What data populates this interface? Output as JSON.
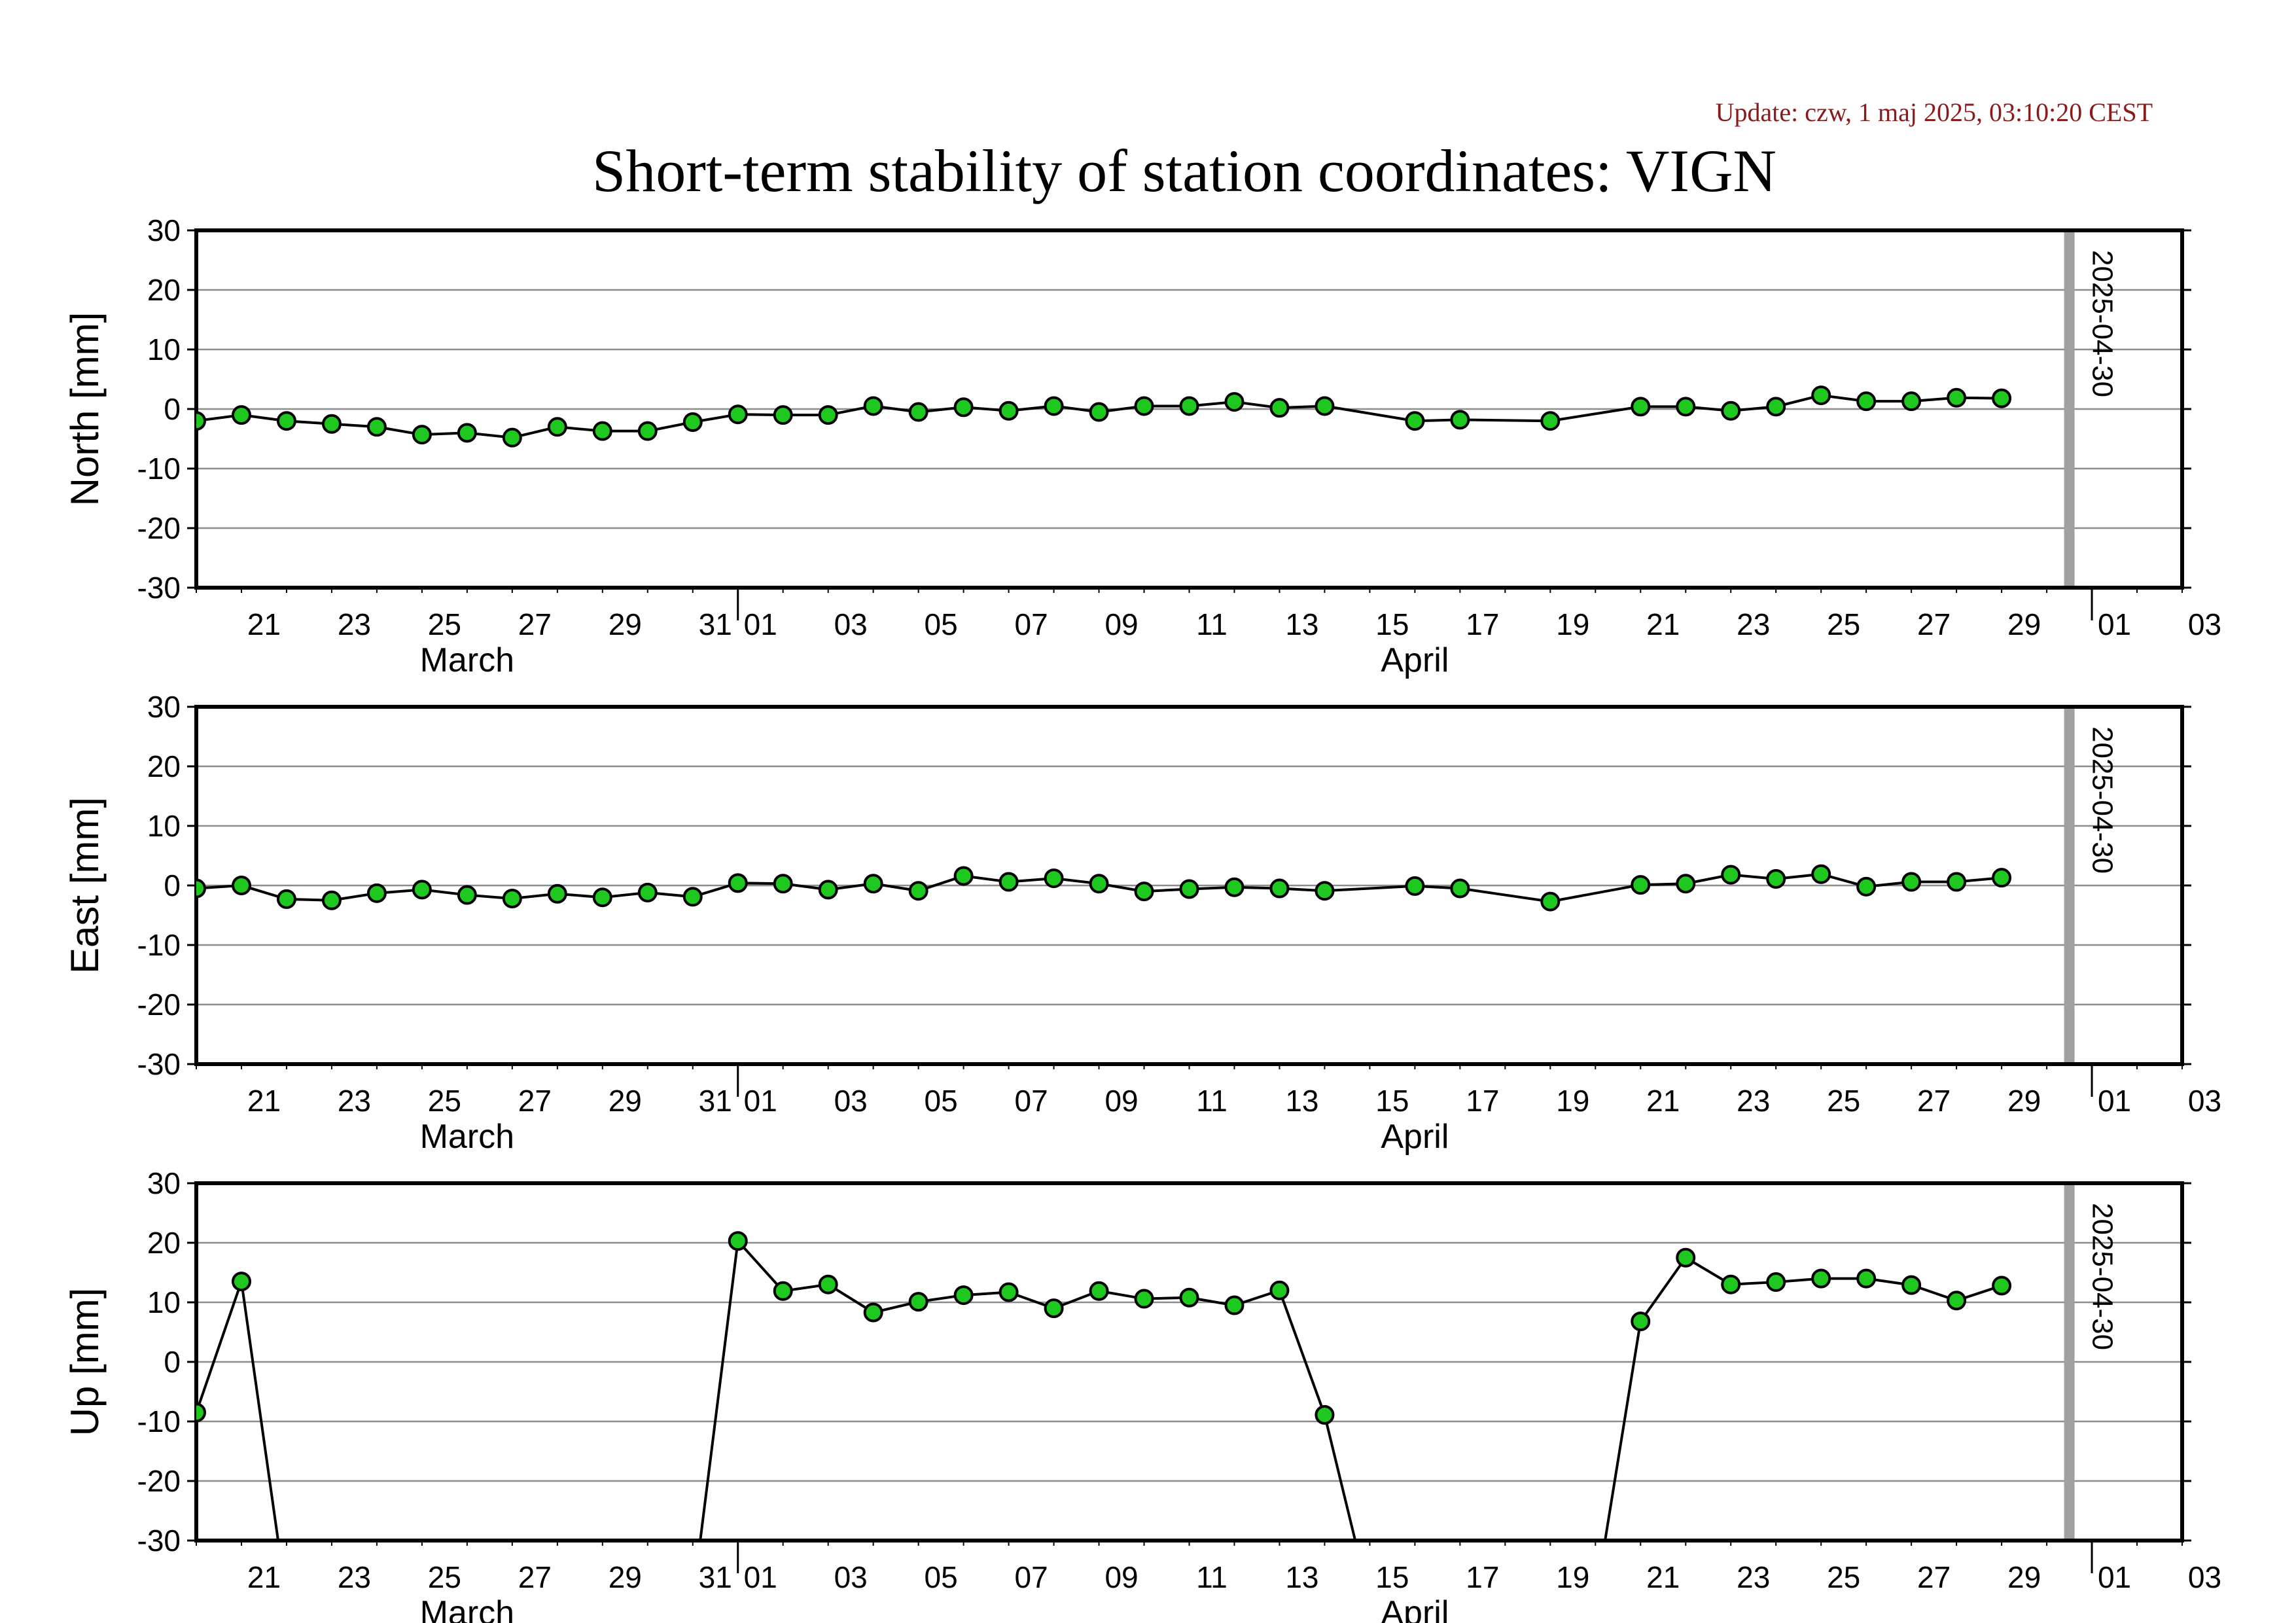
{
  "update_text": "Update: czw, 1 maj 2025, 03:10:20 CEST",
  "chart_data": {
    "type": "line",
    "title": "Short-term stability of station coordinates: VIGN",
    "x_range": [
      "2025-03-20",
      "2025-05-03"
    ],
    "x_tick_labels": [
      "21",
      "23",
      "25",
      "27",
      "29",
      "31",
      "01",
      "03",
      "05",
      "07",
      "09",
      "11",
      "13",
      "15",
      "17",
      "19",
      "21",
      "23",
      "25",
      "27",
      "29",
      "01",
      "03"
    ],
    "month_labels": [
      "March",
      "April"
    ],
    "grid": true,
    "marker": {
      "date": "2025-04-30",
      "label": "2025-04-30",
      "color": "#a0a0a0"
    },
    "point_color": "#1ec81e",
    "panels": [
      {
        "ylabel": "North [mm]",
        "ylim": [
          -30,
          30
        ],
        "y_ticks": [
          30,
          20,
          10,
          0,
          -10,
          -20,
          -30
        ],
        "dates": [
          "2025-03-20",
          "2025-03-21",
          "2025-03-22",
          "2025-03-23",
          "2025-03-24",
          "2025-03-25",
          "2025-03-26",
          "2025-03-27",
          "2025-03-28",
          "2025-03-29",
          "2025-03-30",
          "2025-03-31",
          "2025-04-01",
          "2025-04-02",
          "2025-04-03",
          "2025-04-04",
          "2025-04-05",
          "2025-04-06",
          "2025-04-07",
          "2025-04-08",
          "2025-04-09",
          "2025-04-10",
          "2025-04-11",
          "2025-04-12",
          "2025-04-13",
          "2025-04-14",
          "2025-04-16",
          "2025-04-17",
          "2025-04-19",
          "2025-04-21",
          "2025-04-22",
          "2025-04-23",
          "2025-04-24",
          "2025-04-25",
          "2025-04-26",
          "2025-04-27",
          "2025-04-28",
          "2025-04-29"
        ],
        "values": [
          -2,
          -1,
          -2,
          -2.5,
          -3,
          -4.3,
          -4,
          -4.8,
          -3,
          -3.7,
          -3.7,
          -2.2,
          -0.9,
          -1,
          -1,
          0.5,
          -0.5,
          0.3,
          -0.3,
          0.5,
          -0.5,
          0.5,
          0.5,
          1.2,
          0.2,
          0.5,
          -2,
          -1.8,
          -2,
          0.4,
          0.4,
          -0.3,
          0.4,
          2.3,
          1.3,
          1.3,
          1.9,
          1.8
        ]
      },
      {
        "ylabel": "East [mm]",
        "ylim": [
          -30,
          30
        ],
        "y_ticks": [
          30,
          20,
          10,
          0,
          -10,
          -20,
          -30
        ],
        "dates": [
          "2025-03-20",
          "2025-03-21",
          "2025-03-22",
          "2025-03-23",
          "2025-03-24",
          "2025-03-25",
          "2025-03-26",
          "2025-03-27",
          "2025-03-28",
          "2025-03-29",
          "2025-03-30",
          "2025-03-31",
          "2025-04-01",
          "2025-04-02",
          "2025-04-03",
          "2025-04-04",
          "2025-04-05",
          "2025-04-06",
          "2025-04-07",
          "2025-04-08",
          "2025-04-09",
          "2025-04-10",
          "2025-04-11",
          "2025-04-12",
          "2025-04-13",
          "2025-04-14",
          "2025-04-16",
          "2025-04-17",
          "2025-04-19",
          "2025-04-21",
          "2025-04-22",
          "2025-04-23",
          "2025-04-24",
          "2025-04-25",
          "2025-04-26",
          "2025-04-27",
          "2025-04-28",
          "2025-04-29"
        ],
        "values": [
          -0.5,
          0,
          -2.3,
          -2.5,
          -1.3,
          -0.7,
          -1.6,
          -2.2,
          -1.4,
          -2,
          -1.2,
          -1.9,
          0.4,
          0.3,
          -0.7,
          0.3,
          -0.9,
          1.6,
          0.6,
          1.2,
          0.3,
          -1,
          -0.6,
          -0.3,
          -0.5,
          -0.9,
          -0.1,
          -0.5,
          -2.7,
          0.1,
          0.3,
          1.8,
          1.1,
          1.9,
          -0.2,
          0.6,
          0.6,
          1.3
        ]
      },
      {
        "ylabel": "Up [mm]",
        "ylim": [
          -30,
          30
        ],
        "y_ticks": [
          30,
          20,
          10,
          0,
          -10,
          -20,
          -30
        ],
        "dates": [
          "2025-03-20",
          "2025-03-21",
          "2025-03-22",
          "2025-03-31",
          "2025-04-01",
          "2025-04-02",
          "2025-04-03",
          "2025-04-04",
          "2025-04-05",
          "2025-04-06",
          "2025-04-07",
          "2025-04-08",
          "2025-04-09",
          "2025-04-10",
          "2025-04-11",
          "2025-04-12",
          "2025-04-13",
          "2025-04-14",
          "2025-04-15",
          "2025-04-20",
          "2025-04-21",
          "2025-04-22",
          "2025-04-23",
          "2025-04-24",
          "2025-04-25",
          "2025-04-26",
          "2025-04-27",
          "2025-04-28",
          "2025-04-29"
        ],
        "values": [
          -8.5,
          13.5,
          -40,
          -40,
          20.3,
          11.9,
          13,
          8.3,
          10.1,
          11.2,
          11.7,
          9,
          11.9,
          10.6,
          10.8,
          9.5,
          12,
          -8.9,
          -40,
          -40,
          6.8,
          17.5,
          13,
          13.4,
          14,
          14,
          12.9,
          10.3,
          12.8
        ],
        "visible": [
          true,
          true,
          false,
          false,
          true,
          true,
          true,
          true,
          true,
          true,
          true,
          true,
          true,
          true,
          true,
          true,
          true,
          true,
          false,
          false,
          true,
          true,
          true,
          true,
          true,
          true,
          true,
          true,
          true
        ]
      }
    ]
  }
}
